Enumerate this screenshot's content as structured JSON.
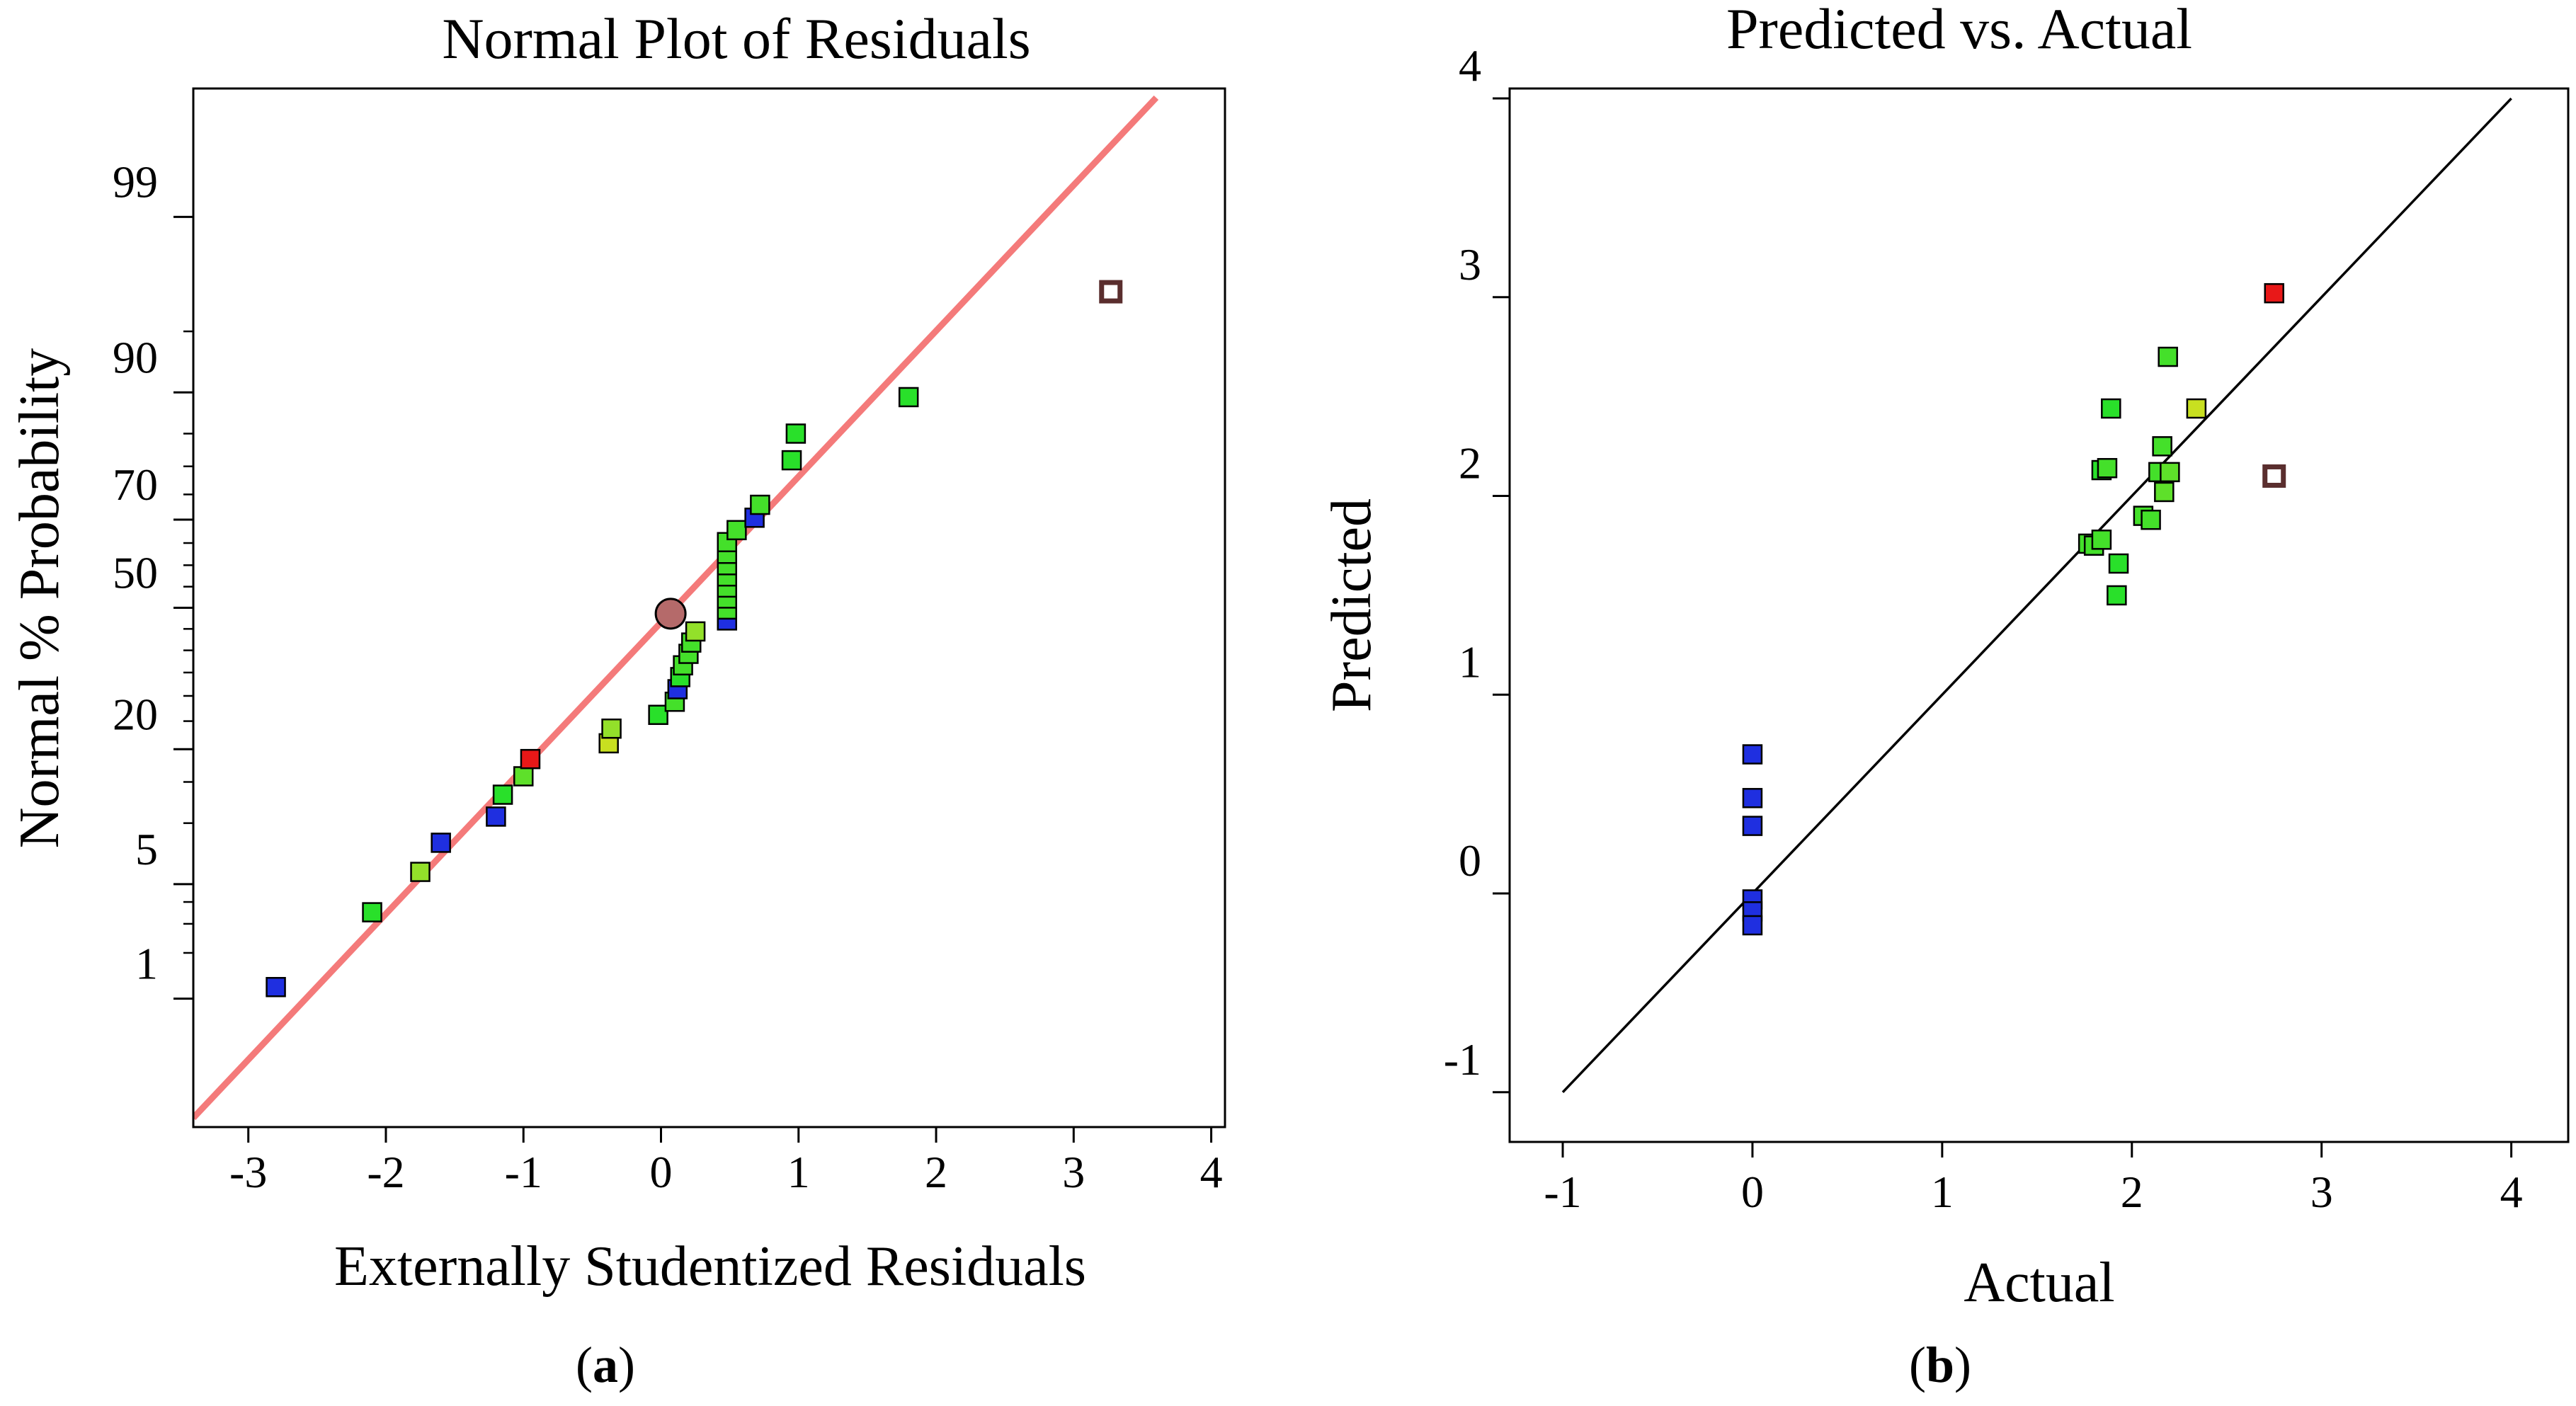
{
  "chart_data": [
    {
      "type": "scatter",
      "title": "Normal Plot of Residuals",
      "xlabel": "Externally Studentized Residuals",
      "ylabel": "Normal % Probability",
      "panel_label": {
        "open": "(",
        "letter": "a",
        "close": ")"
      },
      "xlim": [
        -3.4,
        4.1
      ],
      "xticks": [
        "-3",
        "-2",
        "-1",
        "0",
        "1",
        "2",
        "3",
        "4"
      ],
      "xtick_values": [
        -3,
        -2,
        -1,
        0,
        1,
        2,
        3,
        4
      ],
      "ylim_percent": [
        0.1,
        99.9
      ],
      "yticks": [
        "1",
        "5",
        "20",
        "50",
        "70",
        "90",
        "99"
      ],
      "ytick_values": [
        1,
        5,
        20,
        50,
        70,
        90,
        99
      ],
      "minor_ytick_values": [
        2,
        3,
        4,
        10,
        15,
        25,
        30,
        35,
        40,
        45,
        55,
        60,
        65,
        75,
        80,
        85,
        95
      ],
      "grid": false,
      "reference_line": {
        "from": [
          -3.4,
          0.12
        ],
        "to": [
          3.6,
          99.88
        ],
        "color": "#f47a7a"
      },
      "points": [
        {
          "x": -2.8,
          "p": 1.2,
          "color": "#1f2fe0"
        },
        {
          "x": -2.1,
          "p": 3.5,
          "color": "#29e02a"
        },
        {
          "x": -1.75,
          "p": 5.8,
          "color": "#93e02a"
        },
        {
          "x": -1.6,
          "p": 8.1,
          "color": "#1f2fe0"
        },
        {
          "x": -1.2,
          "p": 10.7,
          "color": "#1f2fe0"
        },
        {
          "x": -1.15,
          "p": 13.3,
          "color": "#29e02a"
        },
        {
          "x": -1.0,
          "p": 15.8,
          "color": "#5ee02a"
        },
        {
          "x": -0.95,
          "p": 18.4,
          "color": "#e81818"
        },
        {
          "x": -0.38,
          "p": 21.0,
          "color": "#c8e020"
        },
        {
          "x": -0.36,
          "p": 23.6,
          "color": "#93e02a"
        },
        {
          "x": -0.02,
          "p": 26.2,
          "color": "#29e02a"
        },
        {
          "x": 0.1,
          "p": 28.8,
          "color": "#44e02a"
        },
        {
          "x": 0.12,
          "p": 31.4,
          "color": "#1f2fe0"
        },
        {
          "x": 0.14,
          "p": 34.0,
          "color": "#29e02a"
        },
        {
          "x": 0.16,
          "p": 36.6,
          "color": "#44e02a"
        },
        {
          "x": 0.2,
          "p": 39.2,
          "color": "#44e02a"
        },
        {
          "x": 0.22,
          "p": 41.8,
          "color": "#44e02a"
        },
        {
          "x": 0.25,
          "p": 44.4,
          "color": "#93e02a"
        },
        {
          "x": 0.48,
          "p": 47.0,
          "color": "#1f2fe0"
        },
        {
          "x": 0.48,
          "p": 49.6,
          "color": "#44e02a"
        },
        {
          "x": 0.48,
          "p": 52.2,
          "color": "#44e02a"
        },
        {
          "x": 0.48,
          "p": 54.8,
          "color": "#44e02a"
        },
        {
          "x": 0.48,
          "p": 57.4,
          "color": "#44e02a"
        },
        {
          "x": 0.48,
          "p": 60.0,
          "color": "#44e02a"
        },
        {
          "x": 0.48,
          "p": 62.6,
          "color": "#44e02a"
        },
        {
          "x": 0.48,
          "p": 65.2,
          "color": "#44e02a"
        },
        {
          "x": 0.55,
          "p": 67.8,
          "color": "#44e02a"
        },
        {
          "x": 0.68,
          "p": 70.4,
          "color": "#1f2fe0"
        },
        {
          "x": 0.72,
          "p": 73.0,
          "color": "#44e02a"
        },
        {
          "x": 0.95,
          "p": 81.0,
          "color": "#29e02a"
        },
        {
          "x": 0.98,
          "p": 85.0,
          "color": "#29e02a"
        },
        {
          "x": 1.8,
          "p": 89.5,
          "color": "#29e02a"
        },
        {
          "x": 3.27,
          "p": 97.0,
          "color": "#ffffff",
          "outline": "#5a2e2e"
        }
      ],
      "highlight_point": {
        "x": 0.07,
        "p": 48.6,
        "color": "#b56a6a"
      }
    },
    {
      "type": "scatter",
      "title": "Predicted vs. Actual",
      "xlabel": "Actual",
      "ylabel": "Predicted",
      "panel_label": {
        "open": "(",
        "letter": "b",
        "close": ")"
      },
      "xlim": [
        -1.28,
        4.3
      ],
      "ylim": [
        -1.25,
        4.05
      ],
      "xticks": [
        "-1",
        "0",
        "1",
        "2",
        "3",
        "4"
      ],
      "xtick_values": [
        -1,
        0,
        1,
        2,
        3,
        4
      ],
      "yticks": [
        "-1",
        "0",
        "1",
        "2",
        "3",
        "4"
      ],
      "ytick_values": [
        -1,
        0,
        1,
        2,
        3,
        4
      ],
      "grid": false,
      "reference_line": {
        "from": [
          -1,
          -1
        ],
        "to": [
          4,
          4
        ],
        "color": "#000000"
      },
      "points": [
        {
          "x": 0,
          "y": 0.7,
          "color": "#1f2fe0"
        },
        {
          "x": 0,
          "y": 0.48,
          "color": "#1f2fe0"
        },
        {
          "x": 0,
          "y": 0.34,
          "color": "#1f2fe0"
        },
        {
          "x": 0,
          "y": -0.03,
          "color": "#1f2fe0"
        },
        {
          "x": 0,
          "y": -0.09,
          "color": "#1f2fe0"
        },
        {
          "x": 0,
          "y": -0.16,
          "color": "#1f2fe0"
        },
        {
          "x": 1.77,
          "y": 1.76,
          "color": "#44e02a"
        },
        {
          "x": 1.8,
          "y": 1.75,
          "color": "#44e02a"
        },
        {
          "x": 1.84,
          "y": 1.78,
          "color": "#44e02a"
        },
        {
          "x": 1.84,
          "y": 2.13,
          "color": "#29e02a"
        },
        {
          "x": 1.87,
          "y": 2.14,
          "color": "#44e02a"
        },
        {
          "x": 1.89,
          "y": 2.44,
          "color": "#29e02a"
        },
        {
          "x": 1.93,
          "y": 1.66,
          "color": "#29e02a"
        },
        {
          "x": 1.92,
          "y": 1.5,
          "color": "#29e02a"
        },
        {
          "x": 2.06,
          "y": 1.9,
          "color": "#44e02a"
        },
        {
          "x": 2.1,
          "y": 1.88,
          "color": "#44e02a"
        },
        {
          "x": 2.14,
          "y": 2.12,
          "color": "#44e02a"
        },
        {
          "x": 2.16,
          "y": 2.25,
          "color": "#44e02a"
        },
        {
          "x": 2.17,
          "y": 2.02,
          "color": "#5ee02a"
        },
        {
          "x": 2.19,
          "y": 2.7,
          "color": "#44e02a"
        },
        {
          "x": 2.2,
          "y": 2.12,
          "color": "#5ee02a"
        },
        {
          "x": 2.34,
          "y": 2.44,
          "color": "#c8e020"
        },
        {
          "x": 2.75,
          "y": 3.02,
          "color": "#e81818"
        },
        {
          "x": 2.75,
          "y": 2.1,
          "color": "#ffffff",
          "outline": "#5a2e2e"
        }
      ]
    }
  ]
}
